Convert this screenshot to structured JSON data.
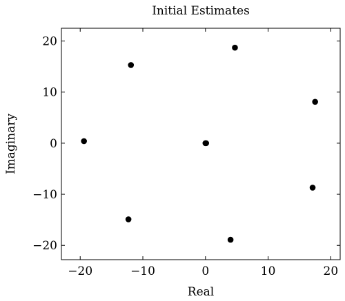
{
  "chart_data": {
    "type": "scatter",
    "title": "Initial Estimates",
    "xlabel": "Real",
    "ylabel": "Imaginary",
    "xlim": [
      -23,
      21.5
    ],
    "ylim": [
      -22.8,
      22.5
    ],
    "xticks": [
      -20,
      -10,
      0,
      10,
      20
    ],
    "xtick_labels": [
      "−20",
      "−10",
      "0",
      "10",
      "20"
    ],
    "yticks": [
      -20,
      -10,
      0,
      10,
      20
    ],
    "ytick_labels": [
      "−20",
      "−10",
      "0",
      "10",
      "20"
    ],
    "grid": false,
    "legend": "none",
    "marker_color": "#000000",
    "points": [
      {
        "x": -19.4,
        "y": 0.4
      },
      {
        "x": -11.9,
        "y": 15.3
      },
      {
        "x": -12.3,
        "y": -14.9
      },
      {
        "x": 0.0,
        "y": 0.0
      },
      {
        "x": 0.1,
        "y": 0.0
      },
      {
        "x": 4.7,
        "y": 18.7
      },
      {
        "x": 4.0,
        "y": -18.9
      },
      {
        "x": 17.5,
        "y": 8.1
      },
      {
        "x": 17.1,
        "y": -8.7
      }
    ]
  }
}
